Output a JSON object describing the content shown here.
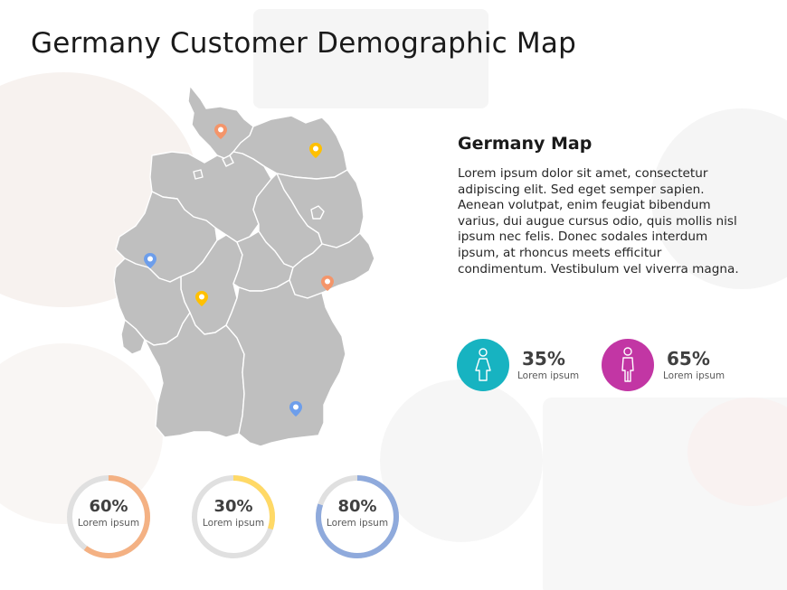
{
  "title": "Germany Customer Demographic Map",
  "info": {
    "heading": "Germany Map",
    "body": "Lorem ipsum dolor sit amet, consectetur adipiscing elit. Sed eget semper sapien. Aenean volutpat, enim feugiat bibendum varius, dui augue cursus odio, quis mollis nisl ipsum nec felis. Donec sodales interdum ipsum, at rhoncus meets efficitur condimentum. Vestibulum vel viverra magna."
  },
  "gender_stats": [
    {
      "icon": "female-icon",
      "percent": "35%",
      "label": "Lorem ipsum",
      "color": "#17b3c1"
    },
    {
      "icon": "male-icon",
      "percent": "65%",
      "label": "Lorem ipsum",
      "color": "#c236a4"
    }
  ],
  "donuts": [
    {
      "percent": "60%",
      "value": 0.6,
      "label": "Lorem ipsum",
      "color": "#f4b183"
    },
    {
      "percent": "30%",
      "value": 0.3,
      "label": "Lorem ipsum",
      "color": "#ffd966"
    },
    {
      "percent": "80%",
      "value": 0.8,
      "label": "Lorem ipsum",
      "color": "#8faadc"
    }
  ],
  "map": {
    "region_color": "#bfbfbf",
    "border_color": "#ffffff",
    "pins": [
      {
        "name": "map-pin-north",
        "color": "#f4956a"
      },
      {
        "name": "map-pin-northeast",
        "color": "#ffc000"
      },
      {
        "name": "map-pin-west",
        "color": "#6d9eeb"
      },
      {
        "name": "map-pin-central",
        "color": "#ffc000"
      },
      {
        "name": "map-pin-east",
        "color": "#f4956a"
      },
      {
        "name": "map-pin-south",
        "color": "#6d9eeb"
      }
    ]
  },
  "colors": {
    "donut_track": "#e0e0e0"
  }
}
